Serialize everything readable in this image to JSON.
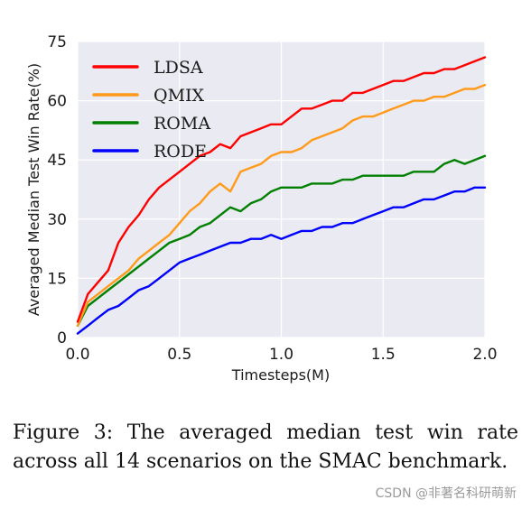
{
  "chart_data": {
    "type": "line",
    "xlabel": "Timesteps(M)",
    "ylabel": "Averaged Median Test Win Rate(%)",
    "xlim": [
      0,
      2.0
    ],
    "ylim": [
      0,
      75
    ],
    "xticks": [
      "0.0",
      "0.5",
      "1.0",
      "1.5",
      "2.0"
    ],
    "yticks": [
      "0",
      "15",
      "30",
      "45",
      "60",
      "75"
    ],
    "grid": true,
    "legend_position": "top-left",
    "x": [
      0.0,
      0.05,
      0.1,
      0.15,
      0.2,
      0.25,
      0.3,
      0.35,
      0.4,
      0.45,
      0.5,
      0.55,
      0.6,
      0.65,
      0.7,
      0.75,
      0.8,
      0.85,
      0.9,
      0.95,
      1.0,
      1.05,
      1.1,
      1.15,
      1.2,
      1.25,
      1.3,
      1.35,
      1.4,
      1.45,
      1.5,
      1.55,
      1.6,
      1.65,
      1.7,
      1.75,
      1.8,
      1.85,
      1.9,
      1.95,
      2.0
    ],
    "series": [
      {
        "name": "LDSA",
        "color": "#ff0000",
        "values": [
          4,
          11,
          14,
          17,
          24,
          28,
          31,
          35,
          38,
          40,
          42,
          44,
          46,
          47,
          49,
          48,
          51,
          52,
          53,
          54,
          54,
          56,
          58,
          58,
          59,
          60,
          60,
          62,
          62,
          63,
          64,
          65,
          65,
          66,
          67,
          67,
          68,
          68,
          69,
          70,
          71
        ]
      },
      {
        "name": "QMIX",
        "color": "#ff9a1a",
        "values": [
          3,
          9,
          11,
          13,
          15,
          17,
          20,
          22,
          24,
          26,
          29,
          32,
          34,
          37,
          39,
          37,
          42,
          43,
          44,
          46,
          47,
          47,
          48,
          50,
          51,
          52,
          53,
          55,
          56,
          56,
          57,
          58,
          59,
          60,
          60,
          61,
          61,
          62,
          63,
          63,
          64
        ]
      },
      {
        "name": "ROMA",
        "color": "#008000",
        "values": [
          3,
          8,
          10,
          12,
          14,
          16,
          18,
          20,
          22,
          24,
          25,
          26,
          28,
          29,
          31,
          33,
          32,
          34,
          35,
          37,
          38,
          38,
          38,
          39,
          39,
          39,
          40,
          40,
          41,
          41,
          41,
          41,
          41,
          42,
          42,
          42,
          44,
          45,
          44,
          45,
          46
        ]
      },
      {
        "name": "RODE",
        "color": "#0000ff",
        "values": [
          1,
          3,
          5,
          7,
          8,
          10,
          12,
          13,
          15,
          17,
          19,
          20,
          21,
          22,
          23,
          24,
          24,
          25,
          25,
          26,
          25,
          26,
          27,
          27,
          28,
          28,
          29,
          29,
          30,
          31,
          32,
          33,
          33,
          34,
          35,
          35,
          36,
          37,
          37,
          38,
          38
        ]
      }
    ]
  },
  "caption": "Figure 3: The averaged median test win rate across all 14 scenarios on the SMAC benchmark.",
  "watermark": "CSDN @非著名科研萌新"
}
